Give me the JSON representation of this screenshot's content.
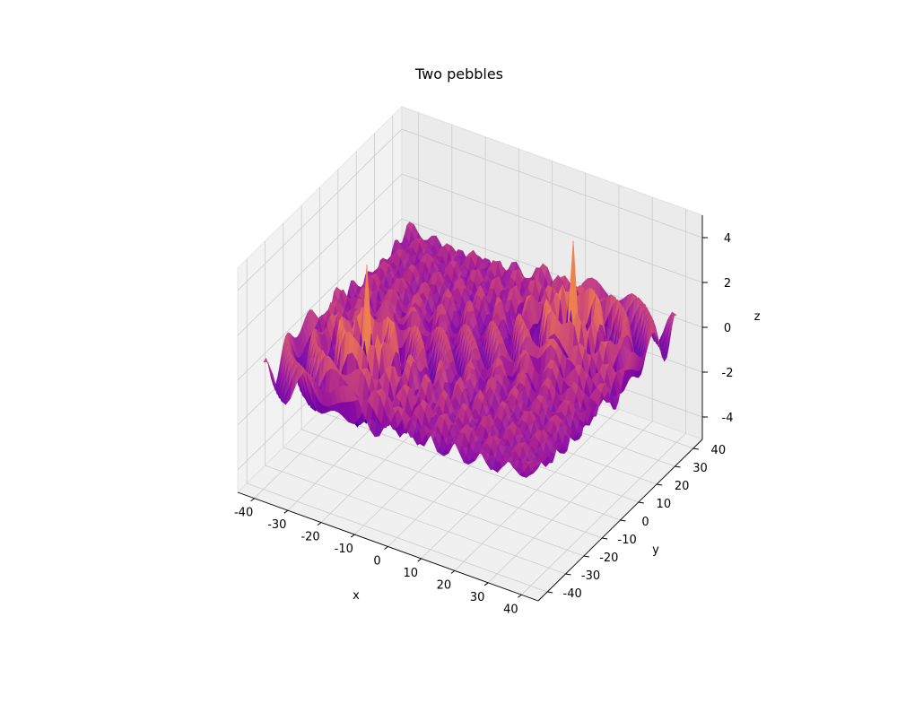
{
  "chart_data": {
    "type": "surface",
    "title": "Two pebbles",
    "xlabel": "x",
    "ylabel": "y",
    "zlabel": "z",
    "xlim": [
      -45,
      45
    ],
    "ylim": [
      -45,
      45
    ],
    "zlim": [
      -5,
      5
    ],
    "xticks": [
      -40,
      -30,
      -20,
      -10,
      0,
      10,
      20,
      30,
      40
    ],
    "yticks": [
      -40,
      -30,
      -20,
      -10,
      0,
      10,
      20,
      30,
      40
    ],
    "zticks": [
      -4,
      -2,
      0,
      2,
      4
    ],
    "x_range": [
      -40,
      40
    ],
    "y_range": [
      -40,
      40
    ],
    "sources": [
      {
        "x": -20,
        "y": -20,
        "peak": 5.0
      },
      {
        "x": 20,
        "y": 20,
        "peak": 5.0
      }
    ],
    "colormap": "plasma",
    "grid": true,
    "pane_color": "#f2f2f2"
  }
}
